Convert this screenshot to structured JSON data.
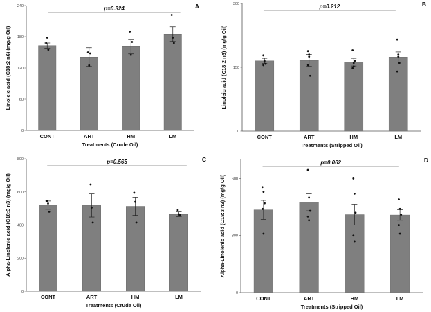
{
  "colors": {
    "bar": "#7f7f7f",
    "bar_edge": "#6a6a6a",
    "axis": "#555555",
    "point": "#111111",
    "pline": "#333333"
  },
  "chart_data": [
    {
      "type": "bar",
      "panel_label": "A",
      "pvalue_text": "p=0.324",
      "xlabel": "Treatments (Crude Oil)",
      "ylabel": "Linoleic acid (C18:2 n6) (mg/g Oil)",
      "ylim": [
        0,
        240
      ],
      "yticks": [
        "0",
        "60",
        "120",
        "180",
        "240"
      ],
      "grid": false,
      "categories": [
        "CONT",
        "ART",
        "HM",
        "LM"
      ],
      "values": [
        163,
        141,
        161,
        185
      ],
      "errors": [
        5,
        18,
        14,
        14
      ],
      "points": [
        [
          168,
          178,
          155
        ],
        [
          150,
          125,
          148
        ],
        [
          190,
          145,
          170
        ],
        [
          222,
          178,
          168
        ]
      ]
    },
    {
      "type": "bar",
      "panel_label": "B",
      "pvalue_text": "p=0.212",
      "xlabel": "Treatments (Stripped Oil)",
      "ylabel": "Linoleic acid (C18:2 n6) (mg/g Oil)",
      "ylim": [
        0,
        300
      ],
      "yticks": [
        "0",
        "150",
        "300"
      ],
      "grid": false,
      "categories": [
        "CONT",
        "ART",
        "HM",
        "LM"
      ],
      "values": [
        165,
        166,
        162,
        174
      ],
      "errors": [
        6,
        14,
        9,
        12
      ],
      "points": [
        [
          178,
          163,
          158,
          155,
          165
        ],
        [
          188,
          180,
          130,
          155,
          175
        ],
        [
          148,
          152,
          165,
          190,
          160
        ],
        [
          215,
          180,
          160,
          140,
          175
        ]
      ]
    },
    {
      "type": "bar",
      "panel_label": "C",
      "pvalue_text": "p=0.565",
      "xlabel": "Treatments (Crude Oil)",
      "ylabel": "Alpha-Linolenic acid (C18:3 n3) (mg/g Oil)",
      "ylim": [
        0,
        800
      ],
      "yticks": [
        "0",
        "200",
        "400",
        "600",
        "800"
      ],
      "grid": false,
      "categories": [
        "CONT",
        "ART",
        "HM",
        "LM"
      ],
      "values": [
        520,
        518,
        513,
        465
      ],
      "errors": [
        25,
        70,
        55,
        14
      ],
      "points": [
        [
          545,
          530,
          480
        ],
        [
          645,
          505,
          415
        ],
        [
          595,
          540,
          415
        ],
        [
          490,
          465,
          460
        ]
      ]
    },
    {
      "type": "bar",
      "panel_label": "D",
      "pvalue_text": "p=0.062",
      "xlabel": "Treatments (Stripped Oil)",
      "ylabel": "Alpha-Linolenic acid (C18:3 n3) (mg/g Oil)",
      "ylim": [
        0,
        700
      ],
      "yticks": [
        "0",
        "300",
        "600"
      ],
      "grid": false,
      "categories": [
        "CONT",
        "ART",
        "HM",
        "LM"
      ],
      "values": [
        435,
        475,
        410,
        408
      ],
      "errors": [
        50,
        45,
        55,
        28
      ],
      "points": [
        [
          555,
          530,
          470,
          440,
          310
        ],
        [
          645,
          500,
          430,
          400,
          380
        ],
        [
          600,
          520,
          420,
          300,
          270
        ],
        [
          490,
          440,
          410,
          355,
          310
        ]
      ]
    }
  ]
}
